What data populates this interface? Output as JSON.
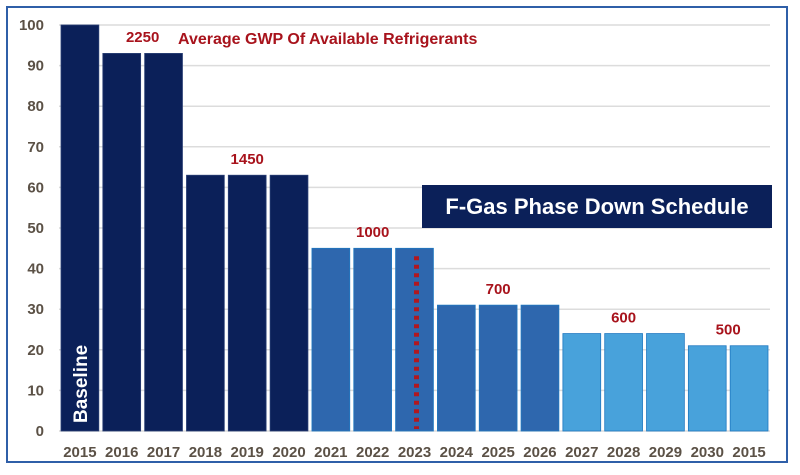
{
  "chart_data": {
    "type": "bar",
    "title": "Average GWP Of Available Refrigerants",
    "subtitle_box": "F-Gas Phase Down Schedule",
    "xlabel": "",
    "ylabel": "",
    "ylim": [
      0,
      100
    ],
    "yticks": [
      0,
      10,
      20,
      30,
      40,
      50,
      60,
      70,
      80,
      90,
      100
    ],
    "grid": true,
    "categories": [
      "2015",
      "2016",
      "2017",
      "2018",
      "2019",
      "2020",
      "2021",
      "2022",
      "2023",
      "2024",
      "2025",
      "2026",
      "2027",
      "2028",
      "2029",
      "2030",
      "2015"
    ],
    "values": [
      100,
      93,
      93,
      63,
      63,
      63,
      45,
      45,
      45,
      31,
      31,
      31,
      24,
      24,
      24,
      21,
      21
    ],
    "bar_groups": [
      0,
      0,
      0,
      0,
      0,
      0,
      1,
      1,
      1,
      1,
      1,
      1,
      2,
      2,
      2,
      2,
      2
    ],
    "group_colors": [
      "#0b2059",
      "#2e67ae",
      "#48a2db"
    ],
    "baseline_label": {
      "bar_index": 0,
      "text": "Baseline"
    },
    "marker_line": {
      "bar_index": 8,
      "style": "dotted",
      "color": "#b01820"
    },
    "annotations": [
      {
        "text": "2250",
        "bar_index": 1.5,
        "level": 97
      },
      {
        "text": "1450",
        "bar_index": 4,
        "level": 67
      },
      {
        "text": "1000",
        "bar_index": 7,
        "level": 49
      },
      {
        "text": "700",
        "bar_index": 10,
        "level": 35
      },
      {
        "text": "600",
        "bar_index": 13,
        "level": 28
      },
      {
        "text": "500",
        "bar_index": 15.5,
        "level": 25
      }
    ],
    "colors": {
      "annotation": "#a8131c",
      "title_box_bg": "#0b2059",
      "tick_text": "#5b5146",
      "frame": "#2f5fa8"
    }
  }
}
